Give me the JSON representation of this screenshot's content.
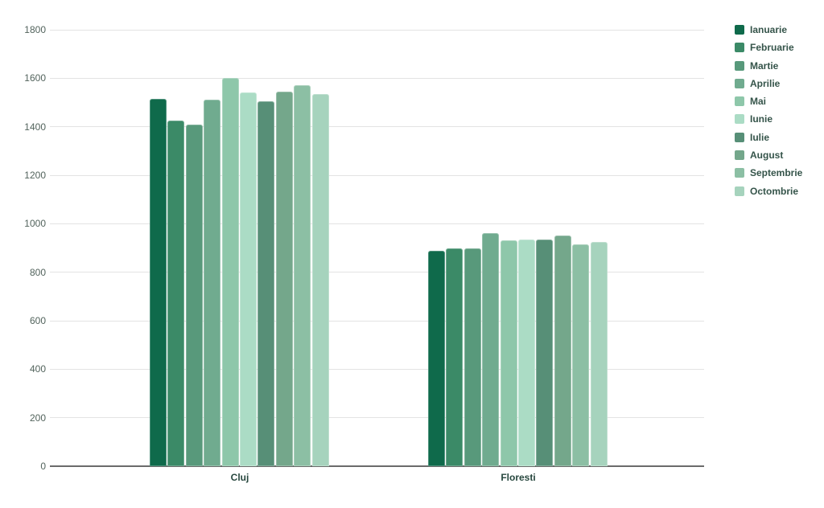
{
  "chart_data": {
    "type": "bar",
    "title": "",
    "xlabel": "",
    "ylabel": "",
    "categories": [
      "Cluj",
      "Floresti"
    ],
    "series": [
      {
        "name": "Ianuarie",
        "color": "#0f6a4b",
        "values": [
          1515,
          890
        ]
      },
      {
        "name": "Februarie",
        "color": "#3b8a67",
        "values": [
          1425,
          900
        ]
      },
      {
        "name": "Martie",
        "color": "#58997b",
        "values": [
          1410,
          900
        ]
      },
      {
        "name": "Aprilie",
        "color": "#70ab8f",
        "values": [
          1510,
          960
        ]
      },
      {
        "name": "Mai",
        "color": "#8ec7aa",
        "values": [
          1600,
          930
        ]
      },
      {
        "name": "Iunie",
        "color": "#abdcc5",
        "values": [
          1540,
          935
        ]
      },
      {
        "name": "Iulie",
        "color": "#578f77",
        "values": [
          1505,
          935
        ]
      },
      {
        "name": "August",
        "color": "#74a78b",
        "values": [
          1545,
          950
        ]
      },
      {
        "name": "Septembrie",
        "color": "#8cbfa4",
        "values": [
          1570,
          915
        ]
      },
      {
        "name": "Octombrie",
        "color": "#a6d3bd",
        "values": [
          1535,
          925
        ]
      }
    ],
    "ylim": [
      0,
      1800
    ],
    "yticks": [
      0,
      200,
      400,
      600,
      800,
      1000,
      1200,
      1400,
      1600,
      1800
    ],
    "grid": true,
    "legend_position": "right"
  },
  "colors": {
    "background": "#ffffff",
    "grid": "#e3e3e3",
    "baseline": "#6b6b6b",
    "ytick_text": "#52635c",
    "xlabel_text": "#27473e",
    "legend_text": "#35544a"
  }
}
